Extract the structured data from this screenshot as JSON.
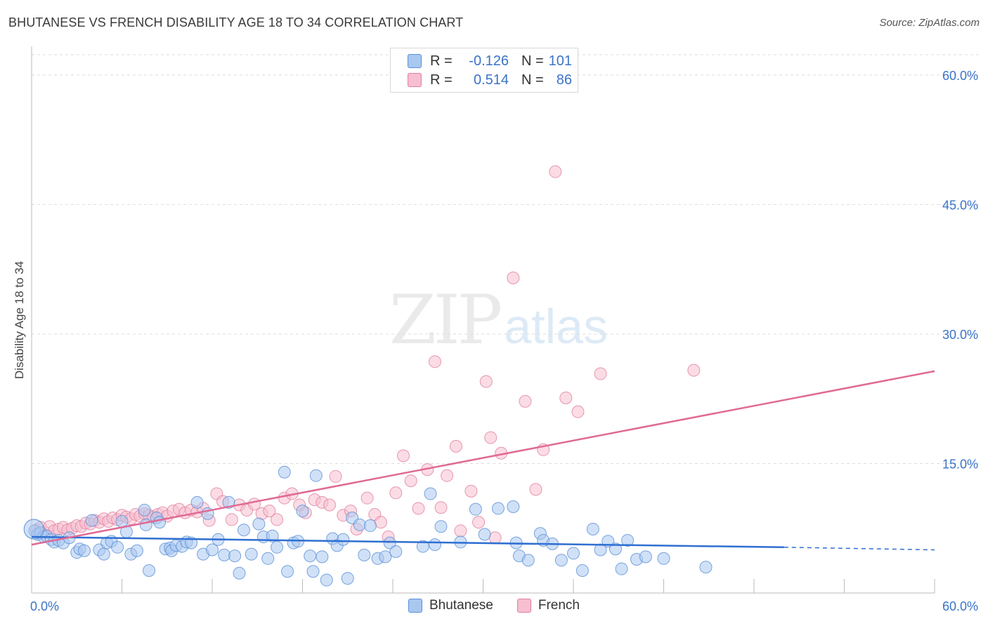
{
  "title": "BHUTANESE VS FRENCH DISABILITY AGE 18 TO 34 CORRELATION CHART",
  "source": "Source: ZipAtlas.com",
  "watermark_left": "ZIP",
  "watermark_right": "atlas",
  "colors": {
    "bhutanese_fill": "#a9c8f0",
    "bhutanese_stroke": "#5b8fd6",
    "bhutanese_line": "#2f6fd1",
    "french_fill": "#f7bfd0",
    "french_stroke": "#e07f9f",
    "french_line": "#e06a94",
    "axis_text": "#3b73c8",
    "grid": "#dddddd"
  },
  "legend_top": {
    "rows": [
      {
        "r_label": "R =",
        "r_value": "-0.126",
        "n_label": "N =",
        "n_value": "101"
      },
      {
        "r_label": "R =",
        "r_value": "0.514",
        "n_label": "N =",
        "n_value": "86"
      }
    ]
  },
  "legend_bottom": [
    "Bhutanese",
    "French"
  ],
  "chart_data": {
    "type": "scatter",
    "title": "BHUTANESE VS FRENCH DISABILITY AGE 18 TO 34 CORRELATION CHART",
    "xlabel": "",
    "ylabel": "Disability Age 18 to 34",
    "xlim": [
      0,
      60
    ],
    "ylim": [
      0,
      63
    ],
    "x_tick_labels": [
      "0.0%",
      "60.0%"
    ],
    "y_ticks": [
      15,
      30,
      45,
      60
    ],
    "y_tick_labels": [
      "15.0%",
      "30.0%",
      "45.0%",
      "60.0%"
    ],
    "grid": true,
    "legend_position": "top-center",
    "series": [
      {
        "name": "Bhutanese",
        "trend": {
          "x0": 0,
          "y0": 6.5,
          "x1": 50,
          "y1": 5.3,
          "dashed_to_x": 60,
          "dashed_to_y": 5.0
        },
        "points": [
          [
            0.2,
            7.2
          ],
          [
            0.4,
            6.8
          ],
          [
            0.6,
            7.0
          ],
          [
            0.8,
            6.5
          ],
          [
            1.0,
            6.6
          ],
          [
            1.3,
            6.2
          ],
          [
            1.5,
            5.9
          ],
          [
            1.8,
            6.1
          ],
          [
            2.1,
            5.8
          ],
          [
            2.5,
            6.4
          ],
          [
            3.0,
            4.7
          ],
          [
            3.2,
            5.1
          ],
          [
            3.5,
            4.9
          ],
          [
            4.0,
            8.4
          ],
          [
            4.5,
            5.0
          ],
          [
            4.8,
            4.5
          ],
          [
            5.0,
            5.8
          ],
          [
            5.3,
            6.0
          ],
          [
            5.7,
            5.3
          ],
          [
            6.0,
            8.3
          ],
          [
            6.3,
            7.1
          ],
          [
            6.6,
            4.5
          ],
          [
            7.0,
            4.9
          ],
          [
            7.5,
            9.6
          ],
          [
            7.6,
            7.9
          ],
          [
            7.8,
            2.6
          ],
          [
            8.3,
            8.7
          ],
          [
            8.5,
            8.2
          ],
          [
            8.9,
            5.1
          ],
          [
            9.2,
            5.2
          ],
          [
            9.3,
            4.9
          ],
          [
            9.6,
            5.5
          ],
          [
            10.0,
            5.4
          ],
          [
            10.3,
            5.9
          ],
          [
            10.6,
            5.8
          ],
          [
            11.0,
            10.5
          ],
          [
            11.4,
            4.5
          ],
          [
            11.7,
            9.2
          ],
          [
            12.0,
            5.0
          ],
          [
            12.4,
            6.2
          ],
          [
            12.8,
            4.4
          ],
          [
            13.1,
            10.5
          ],
          [
            13.5,
            4.3
          ],
          [
            13.8,
            2.3
          ],
          [
            14.1,
            7.3
          ],
          [
            14.6,
            4.5
          ],
          [
            15.1,
            8.0
          ],
          [
            15.4,
            6.5
          ],
          [
            15.7,
            4.0
          ],
          [
            16.0,
            6.6
          ],
          [
            16.3,
            5.3
          ],
          [
            16.8,
            14.0
          ],
          [
            17.0,
            2.5
          ],
          [
            17.4,
            5.8
          ],
          [
            17.7,
            6.0
          ],
          [
            18.0,
            9.5
          ],
          [
            18.5,
            4.3
          ],
          [
            18.7,
            2.5
          ],
          [
            18.9,
            13.6
          ],
          [
            19.3,
            4.2
          ],
          [
            19.6,
            1.5
          ],
          [
            20.0,
            6.3
          ],
          [
            20.3,
            5.5
          ],
          [
            20.7,
            6.2
          ],
          [
            21.0,
            1.7
          ],
          [
            21.3,
            8.7
          ],
          [
            21.8,
            7.9
          ],
          [
            22.1,
            4.4
          ],
          [
            22.5,
            7.8
          ],
          [
            23.0,
            4.0
          ],
          [
            23.5,
            4.2
          ],
          [
            23.8,
            5.8
          ],
          [
            24.2,
            4.8
          ],
          [
            26.0,
            5.4
          ],
          [
            26.5,
            11.5
          ],
          [
            26.8,
            5.6
          ],
          [
            27.2,
            7.7
          ],
          [
            28.5,
            5.9
          ],
          [
            29.5,
            9.7
          ],
          [
            30.1,
            6.8
          ],
          [
            31.0,
            9.8
          ],
          [
            32.0,
            10.0
          ],
          [
            32.2,
            5.8
          ],
          [
            32.4,
            4.3
          ],
          [
            33.0,
            3.8
          ],
          [
            33.8,
            6.9
          ],
          [
            34.0,
            6.1
          ],
          [
            34.6,
            5.7
          ],
          [
            35.2,
            3.8
          ],
          [
            36.0,
            4.6
          ],
          [
            36.6,
            2.6
          ],
          [
            37.3,
            7.4
          ],
          [
            37.8,
            5.0
          ],
          [
            38.3,
            6.0
          ],
          [
            38.8,
            5.1
          ],
          [
            39.2,
            2.8
          ],
          [
            39.6,
            6.1
          ],
          [
            40.2,
            3.9
          ],
          [
            40.8,
            4.2
          ],
          [
            42.0,
            4.0
          ],
          [
            44.8,
            3.0
          ]
        ]
      },
      {
        "name": "French",
        "trend": {
          "x0": 0,
          "y0": 5.6,
          "x1": 60,
          "y1": 25.7
        },
        "points": [
          [
            0.3,
            7.3
          ],
          [
            0.6,
            7.6
          ],
          [
            0.9,
            7.0
          ],
          [
            1.2,
            7.7
          ],
          [
            1.5,
            7.2
          ],
          [
            1.8,
            7.4
          ],
          [
            2.1,
            7.6
          ],
          [
            2.4,
            7.3
          ],
          [
            2.7,
            7.5
          ],
          [
            3.0,
            7.8
          ],
          [
            3.3,
            7.7
          ],
          [
            3.6,
            8.1
          ],
          [
            3.9,
            8.0
          ],
          [
            4.2,
            8.4
          ],
          [
            4.5,
            8.2
          ],
          [
            4.8,
            8.6
          ],
          [
            5.1,
            8.3
          ],
          [
            5.4,
            8.7
          ],
          [
            5.7,
            8.5
          ],
          [
            6.0,
            9.0
          ],
          [
            6.3,
            8.8
          ],
          [
            6.6,
            8.6
          ],
          [
            6.9,
            9.1
          ],
          [
            7.2,
            8.9
          ],
          [
            7.5,
            9.2
          ],
          [
            7.8,
            9.0
          ],
          [
            8.1,
            8.8
          ],
          [
            8.4,
            9.1
          ],
          [
            8.7,
            9.3
          ],
          [
            9.0,
            8.9
          ],
          [
            9.4,
            9.5
          ],
          [
            9.8,
            9.7
          ],
          [
            10.2,
            9.3
          ],
          [
            10.6,
            9.6
          ],
          [
            11.0,
            9.4
          ],
          [
            11.4,
            9.8
          ],
          [
            11.8,
            8.4
          ],
          [
            12.3,
            11.5
          ],
          [
            12.7,
            10.6
          ],
          [
            13.3,
            8.5
          ],
          [
            13.8,
            10.2
          ],
          [
            14.3,
            9.6
          ],
          [
            14.8,
            10.3
          ],
          [
            15.3,
            9.2
          ],
          [
            15.8,
            9.5
          ],
          [
            16.3,
            8.5
          ],
          [
            16.8,
            11.0
          ],
          [
            17.3,
            11.5
          ],
          [
            17.8,
            10.2
          ],
          [
            18.2,
            9.3
          ],
          [
            18.8,
            10.8
          ],
          [
            19.3,
            10.5
          ],
          [
            19.8,
            10.2
          ],
          [
            20.2,
            13.5
          ],
          [
            20.7,
            9.0
          ],
          [
            21.2,
            9.5
          ],
          [
            21.6,
            7.4
          ],
          [
            22.3,
            11.0
          ],
          [
            22.8,
            9.1
          ],
          [
            23.2,
            8.2
          ],
          [
            23.7,
            6.5
          ],
          [
            24.2,
            11.6
          ],
          [
            24.7,
            15.9
          ],
          [
            25.2,
            13.0
          ],
          [
            25.7,
            9.8
          ],
          [
            26.3,
            14.3
          ],
          [
            26.8,
            26.8
          ],
          [
            27.2,
            9.9
          ],
          [
            27.6,
            13.6
          ],
          [
            28.2,
            17.0
          ],
          [
            28.5,
            7.2
          ],
          [
            29.2,
            11.8
          ],
          [
            29.7,
            8.2
          ],
          [
            30.2,
            24.5
          ],
          [
            30.5,
            18.0
          ],
          [
            30.8,
            6.4
          ],
          [
            31.2,
            16.2
          ],
          [
            32.0,
            36.5
          ],
          [
            32.8,
            22.2
          ],
          [
            33.5,
            12.0
          ],
          [
            34.0,
            16.6
          ],
          [
            34.8,
            48.8
          ],
          [
            35.5,
            22.6
          ],
          [
            36.3,
            21.0
          ],
          [
            37.8,
            25.4
          ],
          [
            44.0,
            25.8
          ]
        ]
      }
    ]
  }
}
